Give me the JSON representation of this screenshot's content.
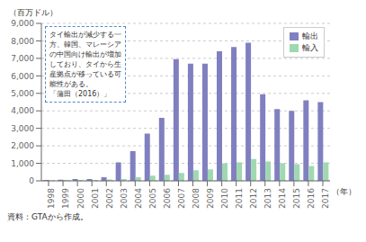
{
  "chart_data": {
    "type": "bar",
    "y_label": "（百万ドル）",
    "x_label": "（年）",
    "caption": "資料：GTAから作成。",
    "annotation": "タイ輸出が減少する一\n方、韓国、マレーシア\nの中国向け輸出が増加\nしており、タイから生\n産拠点が移っている可\n能性がある。\n「蒲田（2016）」",
    "categories": [
      "1998",
      "1999",
      "2000",
      "2001",
      "2002",
      "2003",
      "2004",
      "2005",
      "2006",
      "2007",
      "2008",
      "2009",
      "2010",
      "2011",
      "2012",
      "2013",
      "2014",
      "2015",
      "2016",
      "2017"
    ],
    "series": [
      {
        "name": "輸出",
        "color": "#8080c0",
        "values": [
          50,
          70,
          100,
          100,
          200,
          1050,
          1700,
          2700,
          3600,
          6950,
          6700,
          6700,
          7400,
          7650,
          7900,
          4950,
          4100,
          4000,
          4600,
          4500
        ]
      },
      {
        "name": "輸入",
        "color": "#a0d8b0",
        "values": [
          30,
          50,
          50,
          50,
          80,
          100,
          200,
          300,
          350,
          450,
          600,
          650,
          1000,
          1050,
          1250,
          1100,
          1000,
          950,
          850,
          1050
        ]
      }
    ],
    "ylim": [
      0,
      9000
    ],
    "yticks": [
      0,
      {
        "value": 1000,
        "label": "1,000"
      },
      {
        "value": 2000,
        "label": "2,000"
      },
      {
        "value": 3000,
        "label": "3,000"
      },
      {
        "value": 4000,
        "label": "4,000"
      },
      {
        "value": 5000,
        "label": "5,000"
      },
      {
        "value": 6000,
        "label": "6,000"
      },
      {
        "value": 7000,
        "label": "7,000"
      },
      {
        "value": 8000,
        "label": "8,000"
      },
      {
        "value": 9000,
        "label": "9,000"
      }
    ],
    "grid": true,
    "legend": "upper right"
  }
}
